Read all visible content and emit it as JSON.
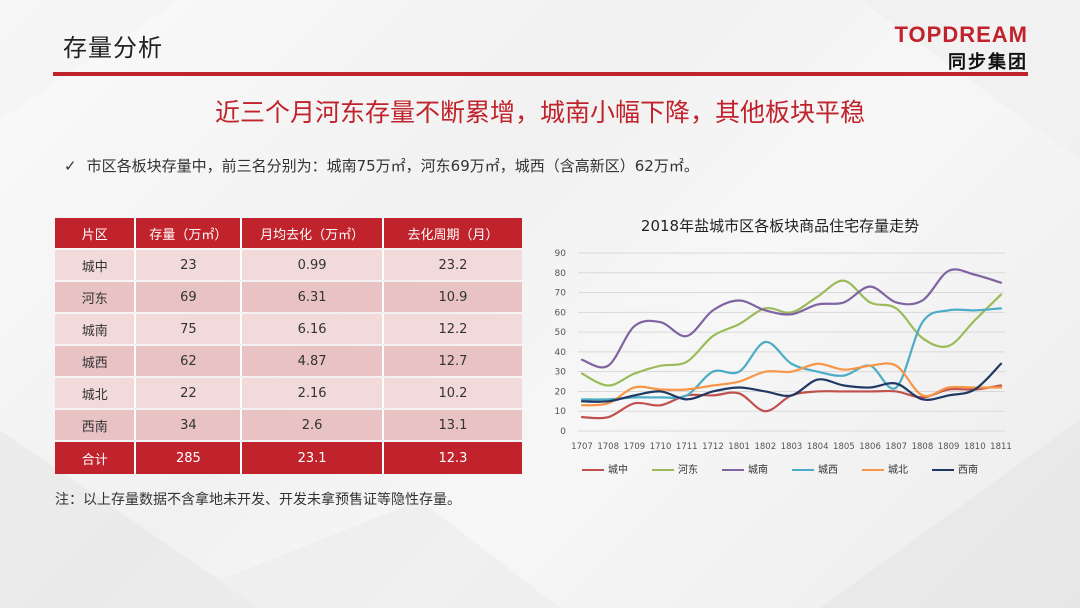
{
  "header": {
    "title": "存量分析"
  },
  "brand": {
    "name_en": "TOPDREAM",
    "name_cn": "同步集团"
  },
  "headline": "近三个月河东存量不断累增，城南小幅下降，其他板块平稳",
  "bullet": "市区各板块存量中，前三名分别为：城南75万㎡，河东69万㎡，城西（含高新区）62万㎡。",
  "table": {
    "headers": [
      "片区",
      "存量（万㎡）",
      "月均去化（万㎡）",
      "去化周期（月）"
    ],
    "rows": [
      [
        "城中",
        "23",
        "0.99",
        "23.2"
      ],
      [
        "河东",
        "69",
        "6.31",
        "10.9"
      ],
      [
        "城南",
        "75",
        "6.16",
        "12.2"
      ],
      [
        "城西",
        "62",
        "4.87",
        "12.7"
      ],
      [
        "城北",
        "22",
        "2.16",
        "10.2"
      ],
      [
        "西南",
        "34",
        "2.6",
        "13.1"
      ]
    ],
    "total": [
      "合计",
      "285",
      "23.1",
      "12.3"
    ]
  },
  "note": "注：以上存量数据不含拿地未开发、开发未拿预售证等隐性存量。",
  "chart_data": {
    "type": "line",
    "title": "2018年盐城市区各板块商品住宅存量走势",
    "x": [
      "1707",
      "1708",
      "1709",
      "1710",
      "1711",
      "1712",
      "1801",
      "1802",
      "1803",
      "1804",
      "1805",
      "1806",
      "1807",
      "1808",
      "1809",
      "1810",
      "1811"
    ],
    "ylim": [
      0,
      90
    ],
    "yticks": [
      0,
      10,
      20,
      30,
      40,
      50,
      60,
      70,
      80,
      90
    ],
    "grid": true,
    "legend": "bottom",
    "series": [
      {
        "name": "城中",
        "color": "#c0504d",
        "values": [
          7,
          7,
          14,
          13,
          18,
          18,
          19,
          10,
          18,
          20,
          20,
          20,
          20,
          17,
          21,
          21,
          23
        ]
      },
      {
        "name": "河东",
        "color": "#9bbb59",
        "values": [
          29,
          23,
          29,
          33,
          35,
          48,
          54,
          62,
          60,
          68,
          76,
          65,
          62,
          47,
          43,
          56,
          69
        ]
      },
      {
        "name": "城南",
        "color": "#8064a2",
        "values": [
          36,
          33,
          53,
          55,
          48,
          61,
          66,
          61,
          59,
          64,
          65,
          73,
          65,
          66,
          81,
          79,
          75
        ]
      },
      {
        "name": "城西",
        "color": "#4bacc6",
        "values": [
          16,
          16,
          17,
          17,
          18,
          30,
          30,
          45,
          34,
          30,
          28,
          33,
          22,
          55,
          61,
          61,
          62
        ]
      },
      {
        "name": "城北",
        "color": "#f79646",
        "values": [
          13,
          14,
          22,
          21,
          21,
          23,
          25,
          30,
          30,
          34,
          31,
          33,
          33,
          18,
          22,
          22,
          22
        ]
      },
      {
        "name": "西南",
        "color": "#1f3864",
        "values": [
          15,
          15,
          18,
          20,
          16,
          20,
          22,
          20,
          18,
          26,
          23,
          22,
          24,
          16,
          18,
          21,
          34
        ]
      }
    ]
  }
}
